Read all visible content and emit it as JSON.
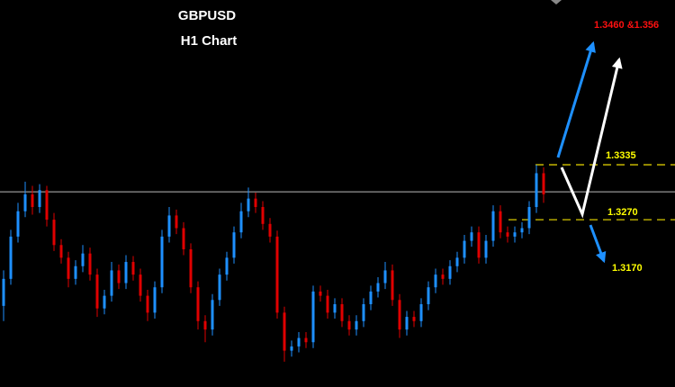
{
  "chart_data": {
    "type": "candlestick",
    "title": "GBPUSD",
    "subtitle": "H1 Chart",
    "ylim": [
      1.3072,
      1.353
    ],
    "up_color": "#1e90ff",
    "down_color": "#e00000",
    "reference_line": 1.3303,
    "levels": [
      {
        "value": 1.3335,
        "label": "1.3335"
      },
      {
        "value": 1.327,
        "label": "1.3270"
      }
    ],
    "targets": [
      "1.3460 &1.356",
      "1.3170"
    ],
    "open": [
      1.3168,
      1.32,
      1.325,
      1.328,
      1.33,
      1.3285,
      1.3305,
      1.327,
      1.324,
      1.3225,
      1.32,
      1.3215,
      1.323,
      1.3205,
      1.3165,
      1.318,
      1.321,
      1.3195,
      1.322,
      1.3205,
      1.318,
      1.316,
      1.319,
      1.325,
      1.3275,
      1.326,
      1.3235,
      1.319,
      1.315,
      1.314,
      1.3175,
      1.3205,
      1.3225,
      1.3255,
      1.328,
      1.3295,
      1.3285,
      1.3265,
      1.325,
      1.316,
      1.3115,
      1.312,
      1.313,
      1.3125,
      1.3185,
      1.318,
      1.316,
      1.317,
      1.315,
      1.314,
      1.315,
      1.317,
      1.3185,
      1.3195,
      1.321,
      1.3175,
      1.314,
      1.3155,
      1.315,
      1.317,
      1.319,
      1.3205,
      1.32,
      1.3215,
      1.3225,
      1.3245,
      1.3255,
      1.3225,
      1.3245,
      1.328,
      1.3255,
      1.325,
      1.3255,
      1.326,
      1.3285,
      1.3325
    ],
    "high": [
      1.321,
      1.3258,
      1.329,
      1.3315,
      1.331,
      1.3312,
      1.331,
      1.3278,
      1.3247,
      1.3232,
      1.3222,
      1.324,
      1.3237,
      1.3212,
      1.3187,
      1.322,
      1.3217,
      1.3228,
      1.3227,
      1.3212,
      1.3187,
      1.3197,
      1.3258,
      1.3285,
      1.3282,
      1.3267,
      1.3242,
      1.3197,
      1.3157,
      1.3182,
      1.3212,
      1.3232,
      1.3262,
      1.329,
      1.3308,
      1.3302,
      1.3292,
      1.3272,
      1.3257,
      1.3167,
      1.3127,
      1.3137,
      1.3137,
      1.3192,
      1.3192,
      1.3187,
      1.3177,
      1.3177,
      1.3157,
      1.3157,
      1.3177,
      1.3192,
      1.3202,
      1.322,
      1.3217,
      1.3182,
      1.3162,
      1.3162,
      1.3177,
      1.3197,
      1.3212,
      1.3212,
      1.3222,
      1.3232,
      1.3252,
      1.3262,
      1.3262,
      1.3252,
      1.3287,
      1.3287,
      1.3262,
      1.3262,
      1.3267,
      1.3292,
      1.3335,
      1.3332
    ],
    "low": [
      1.315,
      1.3193,
      1.3243,
      1.3273,
      1.3276,
      1.3278,
      1.3262,
      1.3233,
      1.3218,
      1.319,
      1.3193,
      1.3208,
      1.3198,
      1.3155,
      1.3158,
      1.3173,
      1.3188,
      1.3188,
      1.3198,
      1.3173,
      1.315,
      1.3153,
      1.3183,
      1.3243,
      1.3253,
      1.3228,
      1.3183,
      1.314,
      1.3125,
      1.3133,
      1.3168,
      1.3198,
      1.3218,
      1.3248,
      1.3273,
      1.3278,
      1.3258,
      1.3243,
      1.3153,
      1.3102,
      1.3108,
      1.3113,
      1.3118,
      1.3118,
      1.3173,
      1.3153,
      1.3153,
      1.3143,
      1.3133,
      1.3133,
      1.3143,
      1.3163,
      1.3178,
      1.3188,
      1.3168,
      1.313,
      1.3133,
      1.3143,
      1.3143,
      1.3163,
      1.3183,
      1.3193,
      1.3193,
      1.3208,
      1.3218,
      1.3238,
      1.3218,
      1.3218,
      1.3238,
      1.3248,
      1.3243,
      1.3243,
      1.3248,
      1.3253,
      1.3278,
      1.329
    ],
    "close": [
      1.32,
      1.325,
      1.328,
      1.33,
      1.3285,
      1.3305,
      1.327,
      1.324,
      1.3225,
      1.32,
      1.3215,
      1.323,
      1.3205,
      1.3165,
      1.318,
      1.321,
      1.3195,
      1.322,
      1.3205,
      1.318,
      1.316,
      1.319,
      1.325,
      1.3275,
      1.326,
      1.3235,
      1.319,
      1.315,
      1.314,
      1.3175,
      1.3205,
      1.3225,
      1.3255,
      1.328,
      1.3295,
      1.3285,
      1.3265,
      1.325,
      1.316,
      1.3115,
      1.312,
      1.313,
      1.3125,
      1.3185,
      1.318,
      1.316,
      1.317,
      1.315,
      1.314,
      1.315,
      1.317,
      1.3185,
      1.3195,
      1.321,
      1.3175,
      1.314,
      1.3155,
      1.315,
      1.317,
      1.319,
      1.3205,
      1.32,
      1.3215,
      1.3225,
      1.3245,
      1.3255,
      1.3225,
      1.3245,
      1.328,
      1.3255,
      1.325,
      1.3255,
      1.326,
      1.3285,
      1.3325,
      1.33
    ]
  }
}
